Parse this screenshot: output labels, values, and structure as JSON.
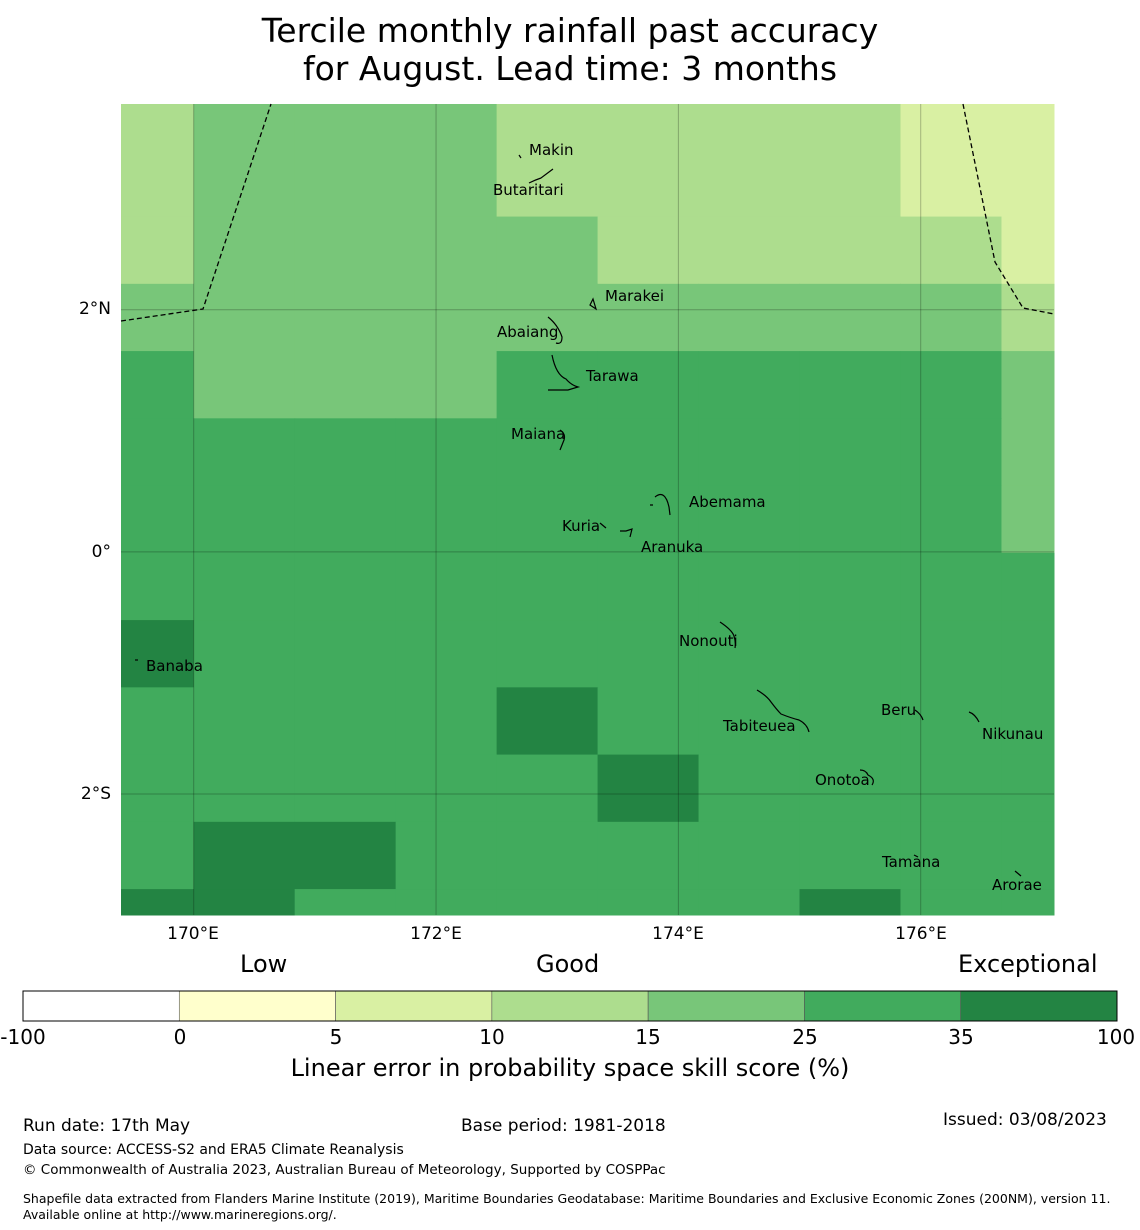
{
  "title_line1": "Tercile monthly rainfall past accuracy",
  "title_line2": "for August. Lead time: 3 months",
  "lat_labels": [
    "2°N",
    "0°",
    "2°S"
  ],
  "lon_labels": [
    "170°E",
    "172°E",
    "174°E",
    "176°E"
  ],
  "colors": {
    "c0": "#ffffcc",
    "c5": "#d9f0a3",
    "c10": "#addd8e",
    "c15": "#78c679",
    "c25": "#41ab5d",
    "c35": "#238443"
  },
  "skill_grid_codes": [
    "233322221111",
    "233332222100",
    "333333333222",
    "533344444333",
    "544444445333",
    "544554444333",
    "555555555555",
    "655555555555",
    "555565555555",
    "555556555555",
    "566555555555",
    "665555565555",
    "555555555666",
    "555555555556",
    "555555555556"
  ],
  "skill_grid_key": {
    "1": "c5",
    "2": "c10",
    "3": "c15",
    "4": "c25 upper",
    "5": "c25",
    "6": "c35"
  },
  "islands": [
    {
      "name": "Makin",
      "lon": 172.95,
      "lat": 3.38
    },
    {
      "name": "Butaritari",
      "lon": 172.77,
      "lat": 3.07
    },
    {
      "name": "Marakei",
      "lon": 173.38,
      "lat": 2.01
    },
    {
      "name": "Abaiang",
      "lon": 172.93,
      "lat": 1.83
    },
    {
      "name": "Tarawa",
      "lon": 173.04,
      "lat": 1.43
    },
    {
      "name": "Maiana",
      "lon": 173.0,
      "lat": 0.92
    },
    {
      "name": "Abemama",
      "lon": 173.88,
      "lat": 0.4
    },
    {
      "name": "Kuria",
      "lon": 173.41,
      "lat": 0.23
    },
    {
      "name": "Aranuka",
      "lon": 173.62,
      "lat": 0.17
    },
    {
      "name": "Banaba",
      "lon": 169.53,
      "lat": -0.87
    },
    {
      "name": "Nonouti",
      "lon": 174.42,
      "lat": -0.67
    },
    {
      "name": "Tabiteuea",
      "lon": 174.8,
      "lat": -1.33
    },
    {
      "name": "Beru",
      "lon": 175.98,
      "lat": -1.33
    },
    {
      "name": "Nikunau",
      "lon": 176.45,
      "lat": -1.35
    },
    {
      "name": "Onotoa",
      "lon": 175.56,
      "lat": -1.8
    },
    {
      "name": "Tamana",
      "lon": 175.98,
      "lat": -2.5
    },
    {
      "name": "Arorae",
      "lon": 176.82,
      "lat": -2.65
    }
  ],
  "categories": [
    "Low",
    "Good",
    "Exceptional"
  ],
  "colorbar_ticks": [
    "-100",
    "0",
    "5",
    "10",
    "15",
    "25",
    "35",
    "100"
  ],
  "colorbar_title": "Linear error in probability space skill score (%)",
  "run_date": "Run date: 17th May",
  "base_period": "Base period: 1981-2018",
  "issued": "Issued: 03/08/2023",
  "data_source": "Data source: ACCESS-S2 and ERA5 Climate Reanalysis",
  "copyright": "© Commonwealth of Australia 2023, Australian Bureau of Meteorology, Supported by COSPPac",
  "shapefile_note": "Shapefile data extracted from Flanders Marine Institute (2019), Maritime Boundaries Geodatabase: Maritime Boundaries and Exclusive Economic Zones (200NM), version 11. Available online at http://www.marineregions.org/."
}
